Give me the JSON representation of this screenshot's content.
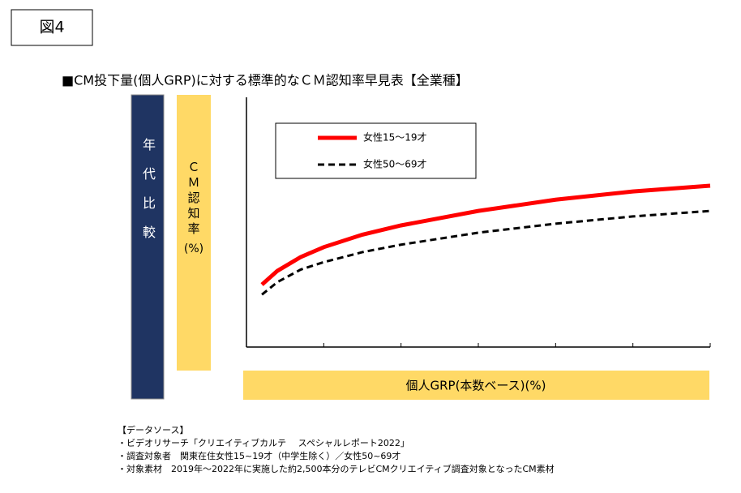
{
  "figure_label": "図4",
  "notes": [
    "【データソース】",
    "・ビデオリサーチ「クリエイティブカルテ　 スペシャルレポート2022」",
    "・調査対象者　関東在住女性15~19才（中学生除く）／女性50~69才",
    "・対象素材　2019年～2022年に実施した約2,500本分のテレビCMクリエイティブ調査対象となったCM素材"
  ],
  "chart_data": {
    "type": "line",
    "title": "■CM投下量(個人GRP)に対する標準的なＣＭ認知率早見表【全業種】",
    "group_label": "年代比較",
    "y_label_lines": [
      "ＣＭ認知率",
      "(%)"
    ],
    "x_label": "個人GRP(本数ベース)(%)",
    "x": [
      0.2,
      0.4,
      0.7,
      1,
      1.5,
      2,
      3,
      4,
      5,
      6
    ],
    "series": [
      {
        "name": "女性15～19才",
        "color": "#ff0000",
        "line_style": "solid",
        "values": [
          25,
          30.5,
          36,
          40,
          45,
          48.7,
          54.5,
          59,
          62.3,
          64.6
        ]
      },
      {
        "name": "女性50～69才",
        "color": "#000000",
        "line_style": "dashed",
        "values": [
          21,
          26,
          31,
          34,
          38,
          41,
          45.8,
          49.4,
          52.3,
          54.5
        ]
      }
    ],
    "xlim": [
      0,
      6
    ],
    "xticks": [
      0,
      1,
      2,
      3,
      4,
      5,
      6
    ],
    "ylim": [
      0,
      100
    ],
    "legend": "upper-left"
  }
}
